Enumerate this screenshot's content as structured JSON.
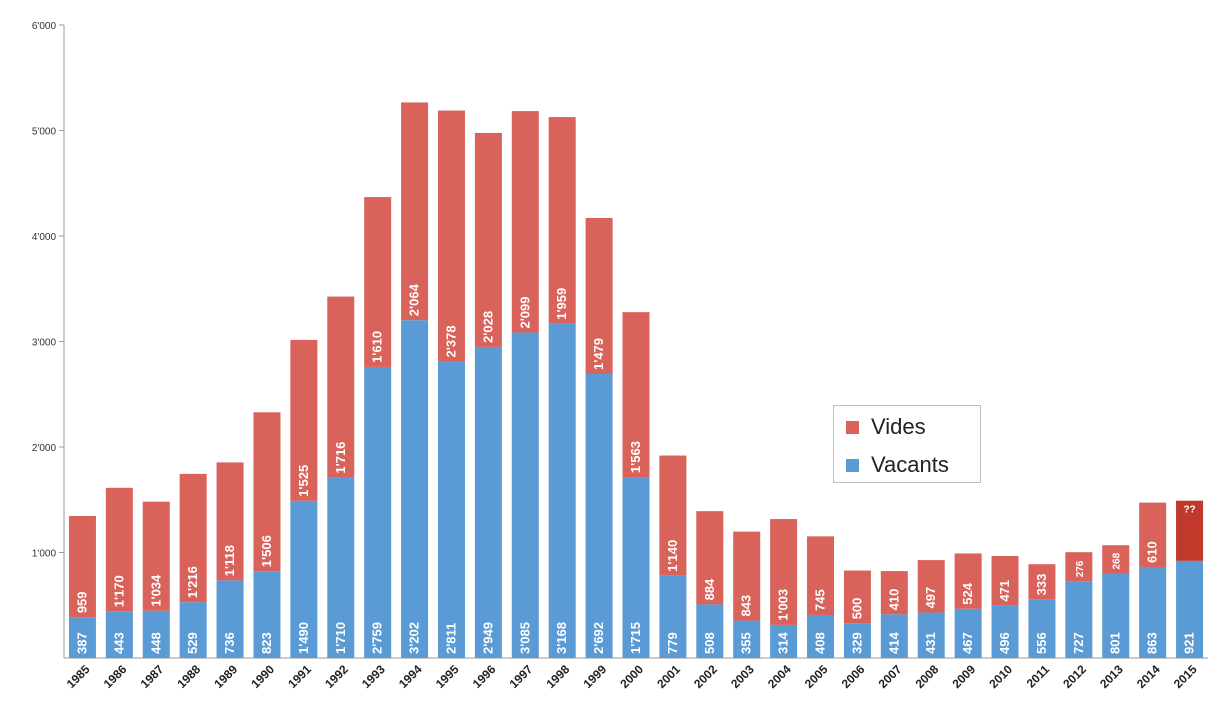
{
  "chart_data": {
    "type": "bar",
    "stacked": true,
    "categories": [
      "1985",
      "1986",
      "1987",
      "1988",
      "1989",
      "1990",
      "1991",
      "1992",
      "1993",
      "1994",
      "1995",
      "1996",
      "1997",
      "1998",
      "1999",
      "2000",
      "2001",
      "2002",
      "2003",
      "2004",
      "2005",
      "2006",
      "2007",
      "2008",
      "2009",
      "2010",
      "2011",
      "2012",
      "2013",
      "2014",
      "2015"
    ],
    "series": [
      {
        "name": "Vacants",
        "color": "#5b9bd5",
        "values": [
          387,
          443,
          448,
          529,
          736,
          823,
          1490,
          1710,
          2759,
          3202,
          2811,
          2949,
          3085,
          3168,
          2692,
          1715,
          779,
          508,
          355,
          314,
          408,
          329,
          414,
          431,
          467,
          496,
          556,
          727,
          801,
          863,
          921
        ],
        "labels": [
          "387",
          "443",
          "448",
          "529",
          "736",
          "823",
          "1'490",
          "1'710",
          "2'759",
          "3'202",
          "2'811",
          "2'949",
          "3'085",
          "3'168",
          "2'692",
          "1'715",
          "779",
          "508",
          "355",
          "314",
          "408",
          "329",
          "414",
          "431",
          "467",
          "496",
          "556",
          "727",
          "801",
          "863",
          "921"
        ]
      },
      {
        "name": "Vides",
        "color": "#d9625b",
        "values": [
          959,
          1170,
          1034,
          1216,
          1118,
          1506,
          1525,
          1716,
          1610,
          2064,
          2378,
          2028,
          2099,
          1959,
          1479,
          1563,
          1140,
          884,
          843,
          1003,
          745,
          500,
          410,
          497,
          524,
          471,
          333,
          276,
          268,
          610,
          570
        ],
        "labels": [
          "959",
          "1'170",
          "1'034",
          "1'216",
          "1'118",
          "1'506",
          "1'525",
          "1'716",
          "1'610",
          "2'064",
          "2'378",
          "2'028",
          "2'099",
          "1'959",
          "1'479",
          "1'563",
          "1'140",
          "884",
          "843",
          "1'003",
          "745",
          "500",
          "410",
          "497",
          "524",
          "471",
          "333",
          "276",
          "268",
          "610",
          "??"
        ]
      }
    ],
    "y_ticks": [
      "6'000",
      "5'000",
      "4'000",
      "3'000",
      "2'000",
      "1'000"
    ],
    "ylim": [
      0,
      6000
    ],
    "legend": {
      "position": "right-middle",
      "items": [
        "Vides",
        "Vacants"
      ]
    },
    "title": "",
    "xlabel": "",
    "ylabel": "",
    "grid": false
  }
}
